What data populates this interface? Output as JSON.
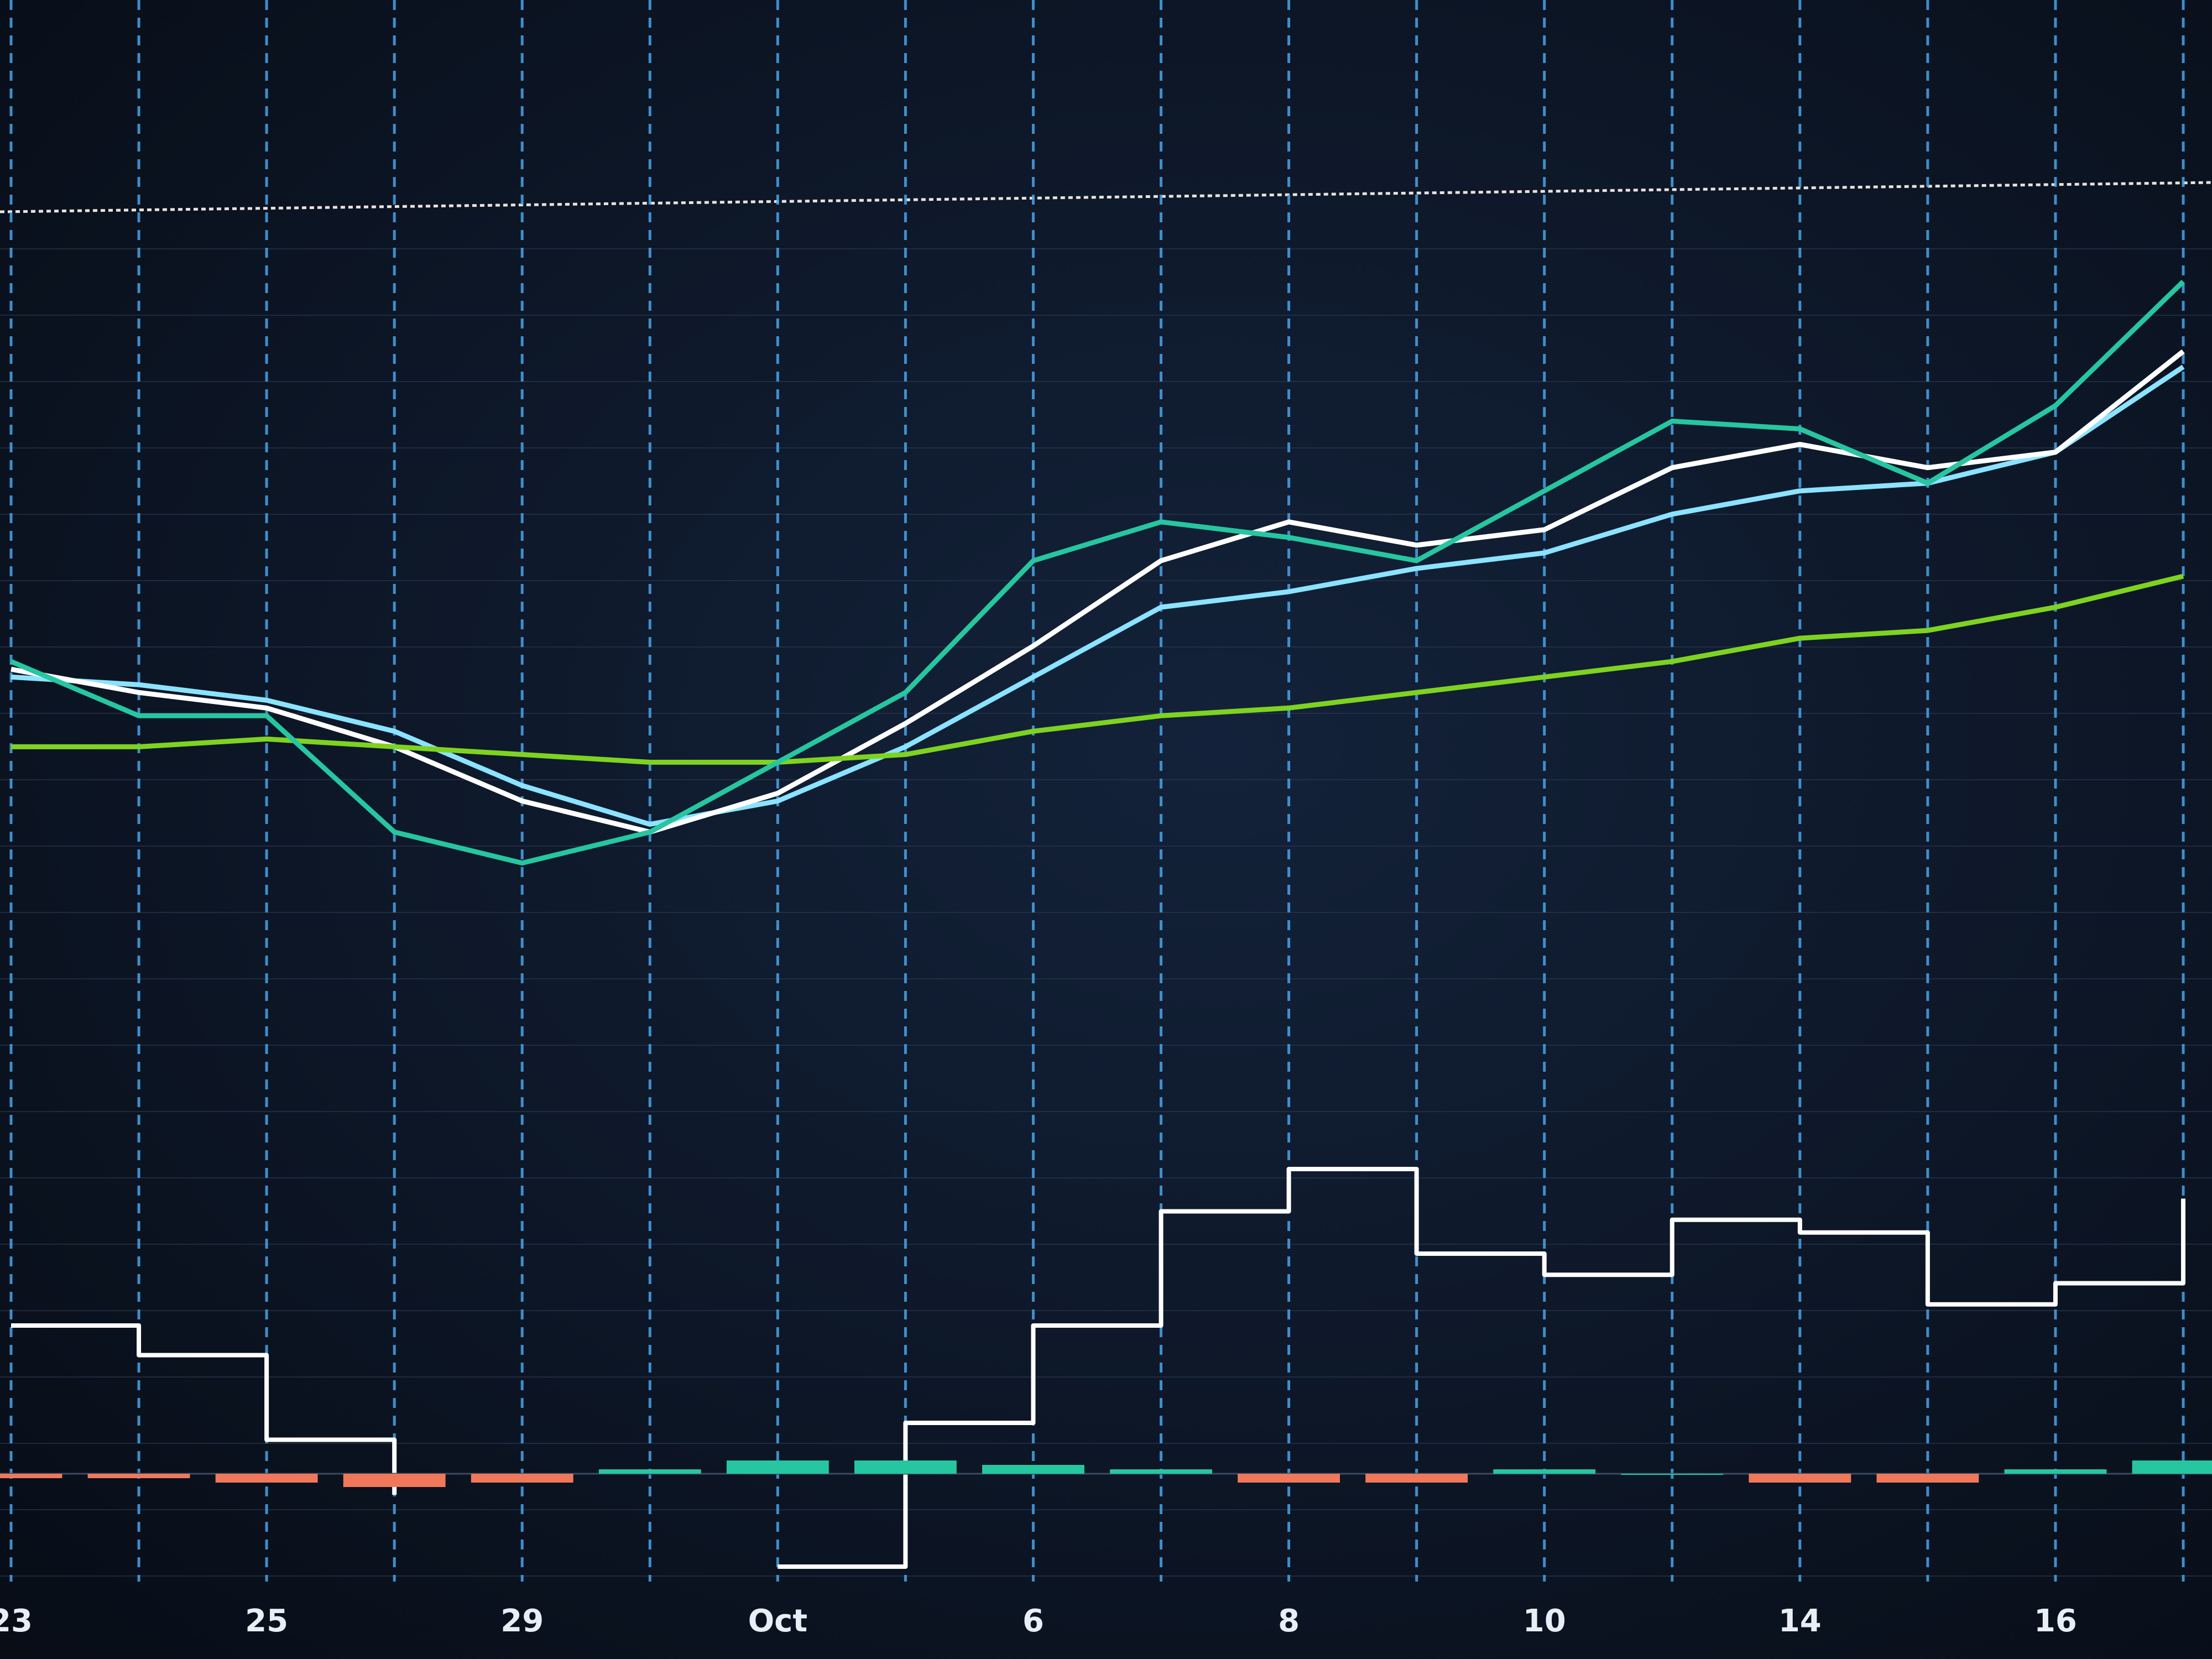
{
  "chart_data": [
    {
      "type": "line",
      "categories": [
        "23",
        null,
        "25",
        null,
        "29",
        null,
        "Oct",
        null,
        "6",
        null,
        "8",
        null,
        "10",
        null,
        "14",
        null,
        "16",
        null
      ],
      "ylim": [
        0,
        100
      ],
      "grid": true,
      "series": [
        {
          "color": "#8be3ff",
          "values": [
            40,
            39,
            37,
            33,
            26,
            21,
            24,
            31,
            40,
            49,
            51,
            54,
            56,
            61,
            64,
            65,
            69,
            80
          ]
        },
        {
          "color": "#ffffff",
          "values": [
            41,
            38,
            36,
            31,
            24,
            20,
            25,
            34,
            44,
            55,
            60,
            57,
            59,
            67,
            70,
            67,
            69,
            82
          ]
        },
        {
          "color": "#7ed321",
          "values": [
            31,
            31,
            32,
            31,
            30,
            29,
            29,
            30,
            33,
            35,
            36,
            38,
            40,
            42,
            45,
            46,
            49,
            53
          ]
        },
        {
          "color": "#26c6a0",
          "values": [
            42,
            35,
            35,
            20,
            16,
            20,
            29,
            38,
            55,
            60,
            58,
            55,
            64,
            73,
            72,
            65,
            75,
            91
          ]
        }
      ]
    },
    {
      "type": "line",
      "ylim": [
        0,
        100
      ],
      "series": [
        {
          "color": "#ffffff",
          "values": [
            60,
            53,
            33,
            20,
            null,
            null,
            3,
            37,
            60,
            87,
            97,
            77,
            72,
            85,
            82,
            65,
            70,
            90
          ]
        }
      ]
    },
    {
      "type": "bar",
      "ylim": [
        -10,
        10
      ],
      "color": "#26c6a0",
      "negative_color": "#f0785a",
      "values": [
        -1,
        -1,
        -2,
        -3,
        -2,
        1,
        3,
        3,
        2,
        1,
        -2,
        -2,
        1,
        0,
        -2,
        -2,
        1,
        3
      ]
    }
  ]
}
